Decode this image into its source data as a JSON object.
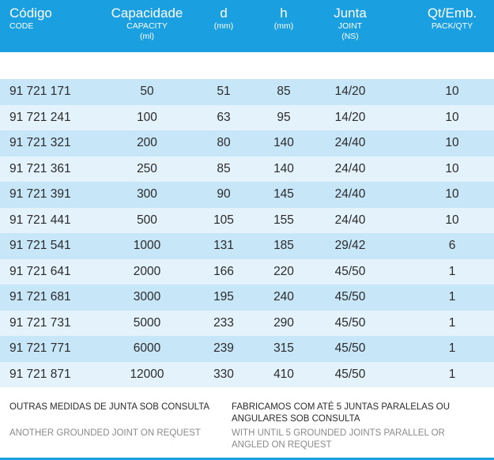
{
  "header": {
    "code": {
      "main": "Código",
      "sub": "CODE"
    },
    "capacity": {
      "main": "Capacidade",
      "sub1": "CAPACITY",
      "sub2": "(ml)"
    },
    "d": {
      "main": "d",
      "sub": "(mm)"
    },
    "h": {
      "main": "h",
      "sub": "(mm)"
    },
    "joint": {
      "main": "Junta",
      "sub1": "JOINT",
      "sub2": "(NS)"
    },
    "pack": {
      "main": "Qt/Emb.",
      "sub": "PACK/QTY"
    }
  },
  "rows": [
    {
      "code": "91 721 171",
      "capacity": "50",
      "d": "51",
      "h": "85",
      "joint": "14/20",
      "pack": "10"
    },
    {
      "code": "91 721 241",
      "capacity": "100",
      "d": "63",
      "h": "95",
      "joint": "14/20",
      "pack": "10"
    },
    {
      "code": "91 721 321",
      "capacity": "200",
      "d": "80",
      "h": "140",
      "joint": "24/40",
      "pack": "10"
    },
    {
      "code": "91 721 361",
      "capacity": "250",
      "d": "85",
      "h": "140",
      "joint": "24/40",
      "pack": "10"
    },
    {
      "code": "91 721 391",
      "capacity": "300",
      "d": "90",
      "h": "145",
      "joint": "24/40",
      "pack": "10"
    },
    {
      "code": "91 721 441",
      "capacity": "500",
      "d": "105",
      "h": "155",
      "joint": "24/40",
      "pack": "10"
    },
    {
      "code": "91 721 541",
      "capacity": "1000",
      "d": "131",
      "h": "185",
      "joint": "29/42",
      "pack": "6"
    },
    {
      "code": "91 721 641",
      "capacity": "2000",
      "d": "166",
      "h": "220",
      "joint": "45/50",
      "pack": "1"
    },
    {
      "code": "91 721 681",
      "capacity": "3000",
      "d": "195",
      "h": "240",
      "joint": "45/50",
      "pack": "1"
    },
    {
      "code": "91 721 731",
      "capacity": "5000",
      "d": "233",
      "h": "290",
      "joint": "45/50",
      "pack": "1"
    },
    {
      "code": "91 721 771",
      "capacity": "6000",
      "d": "239",
      "h": "315",
      "joint": "45/50",
      "pack": "1"
    },
    {
      "code": "91 721 871",
      "capacity": "12000",
      "d": "330",
      "h": "410",
      "joint": "45/50",
      "pack": "1"
    }
  ],
  "footer": {
    "left_pt": "OUTRAS MEDIDAS DE JUNTA SOB CONSULTA",
    "left_en": "ANOTHER GROUNDED JOINT ON REQUEST",
    "right_pt_1": "FABRICAMOS COM ATÉ 5 JUNTAS PARALELAS OU",
    "right_pt_2": "ANGULARES SOB CONSULTA",
    "right_en_1": "WITH UNTIL 5 GROUNDED JOINTS PARALLEL OR",
    "right_en_2": "ANGLED ON REQUEST"
  },
  "colors": {
    "header": "#1a9fe0",
    "row_odd": "#c7e6f8",
    "row_even": "#e3f2fb"
  }
}
